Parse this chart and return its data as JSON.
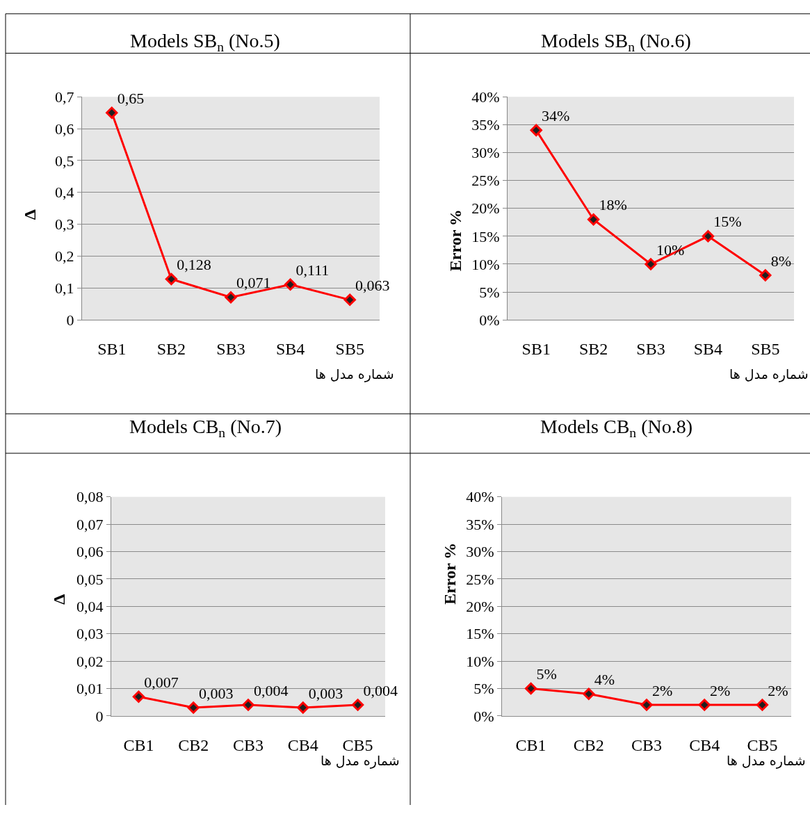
{
  "chart_data": [
    {
      "type": "line",
      "title": "Models SB$_{n}$ (No.5)",
      "xlabel": "شماره مدل ها",
      "ylabel": "Δ",
      "categories": [
        "SB1",
        "SB2",
        "SB3",
        "SB4",
        "SB5"
      ],
      "series": [
        {
          "color": "#ff0000",
          "values": [
            0.65,
            0.128,
            0.071,
            0.111,
            0.063
          ],
          "value_labels": [
            "0,65",
            "0,128",
            "0,071",
            "0,111",
            "0,063"
          ]
        }
      ],
      "ylim": [
        0,
        0.7
      ],
      "yticks": [
        {
          "value": 0,
          "label": "0"
        },
        {
          "value": 0.1,
          "label": "0,1"
        },
        {
          "value": 0.2,
          "label": "0,2"
        },
        {
          "value": 0.3,
          "label": "0,3"
        },
        {
          "value": 0.4,
          "label": "0,4"
        },
        {
          "value": 0.5,
          "label": "0,5"
        },
        {
          "value": 0.6,
          "label": "0,6"
        },
        {
          "value": 0.7,
          "label": "0,7"
        }
      ],
      "grid": "y",
      "marker": "diamond",
      "line_style": "solid"
    },
    {
      "type": "line",
      "title": "Models SB$_{n}$ (No.6)",
      "xlabel": "شماره مدل ها",
      "ylabel": "Error %",
      "categories": [
        "SB1",
        "SB2",
        "SB3",
        "SB4",
        "SB5"
      ],
      "series": [
        {
          "color": "#ff0000",
          "values": [
            34,
            18,
            10,
            15,
            8
          ],
          "value_labels": [
            "34%",
            "18%",
            "10%",
            "15%",
            "8%"
          ]
        }
      ],
      "ylim": [
        0,
        40
      ],
      "yticks": [
        {
          "value": 0,
          "label": "0%"
        },
        {
          "value": 5,
          "label": "5%"
        },
        {
          "value": 10,
          "label": "10%"
        },
        {
          "value": 15,
          "label": "15%"
        },
        {
          "value": 20,
          "label": "20%"
        },
        {
          "value": 25,
          "label": "25%"
        },
        {
          "value": 30,
          "label": "30%"
        },
        {
          "value": 35,
          "label": "35%"
        },
        {
          "value": 40,
          "label": "40%"
        }
      ],
      "grid": "y",
      "marker": "diamond",
      "line_style": "solid"
    },
    {
      "type": "line",
      "title": "Models CB$_{n}$ (No.7)",
      "xlabel": "شماره مدل ها",
      "ylabel": "Δ",
      "categories": [
        "CB1",
        "CB2",
        "CB3",
        "CB4",
        "CB5"
      ],
      "series": [
        {
          "color": "#ff0000",
          "values": [
            0.007,
            0.003,
            0.004,
            0.003,
            0.004
          ],
          "value_labels": [
            "0,007",
            "0,003",
            "0,004",
            "0,003",
            "0,004"
          ]
        }
      ],
      "ylim": [
        0,
        0.08
      ],
      "yticks": [
        {
          "value": 0,
          "label": "0"
        },
        {
          "value": 0.01,
          "label": "0,01"
        },
        {
          "value": 0.02,
          "label": "0,02"
        },
        {
          "value": 0.03,
          "label": "0,03"
        },
        {
          "value": 0.04,
          "label": "0,04"
        },
        {
          "value": 0.05,
          "label": "0,05"
        },
        {
          "value": 0.06,
          "label": "0,06"
        },
        {
          "value": 0.07,
          "label": "0,07"
        },
        {
          "value": 0.08,
          "label": "0,08"
        }
      ],
      "grid": "y",
      "marker": "diamond",
      "line_style": "solid"
    },
    {
      "type": "line",
      "title": "Models CB$_{n}$ (No.8)",
      "xlabel": "شماره مدل ها",
      "ylabel": "Error %",
      "categories": [
        "CB1",
        "CB2",
        "CB3",
        "CB4",
        "CB5"
      ],
      "series": [
        {
          "color": "#ff0000",
          "values": [
            5,
            4,
            2,
            2,
            2
          ],
          "value_labels": [
            "5%",
            "4%",
            "2%",
            "2%",
            "2%"
          ]
        }
      ],
      "ylim": [
        0,
        40
      ],
      "yticks": [
        {
          "value": 0,
          "label": "0%"
        },
        {
          "value": 5,
          "label": "5%"
        },
        {
          "value": 10,
          "label": "10%"
        },
        {
          "value": 15,
          "label": "15%"
        },
        {
          "value": 20,
          "label": "20%"
        },
        {
          "value": 25,
          "label": "25%"
        },
        {
          "value": 30,
          "label": "30%"
        },
        {
          "value": 35,
          "label": "35%"
        },
        {
          "value": 40,
          "label": "40%"
        }
      ],
      "grid": "y",
      "marker": "diamond",
      "line_style": "solid"
    }
  ]
}
